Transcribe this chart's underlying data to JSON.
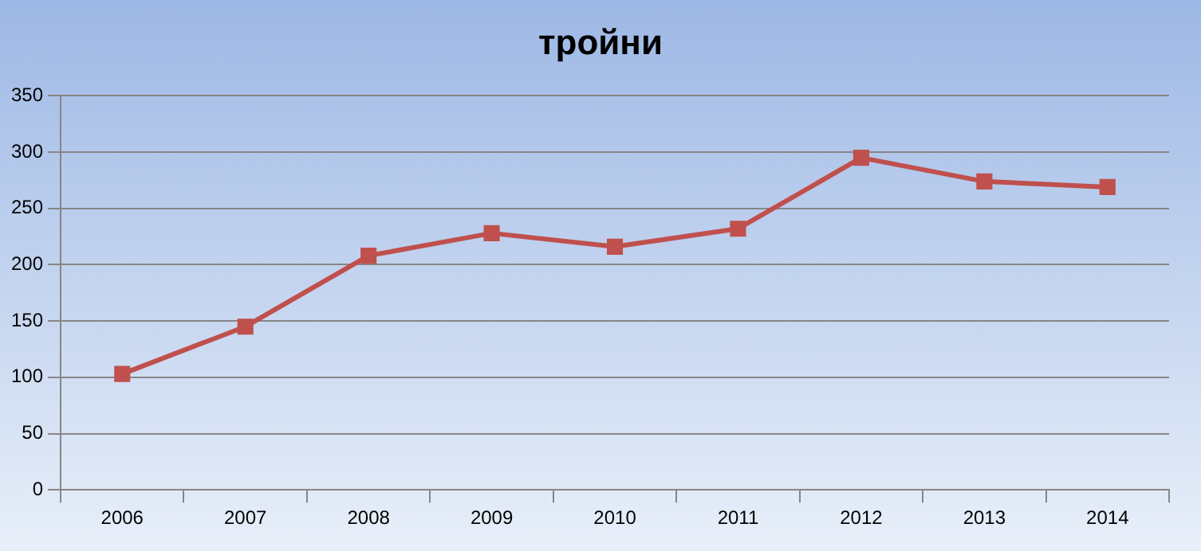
{
  "chart_data": {
    "type": "line",
    "title": "тройни",
    "categories": [
      "2006",
      "2007",
      "2008",
      "2009",
      "2010",
      "2011",
      "2012",
      "2013",
      "2014"
    ],
    "series": [
      {
        "color": "#c0504d",
        "values": [
          103,
          145,
          208,
          228,
          216,
          232,
          295,
          274,
          269
        ]
      }
    ],
    "ylim": [
      0,
      350
    ],
    "yticks": [
      0,
      50,
      100,
      150,
      200,
      250,
      300,
      350
    ],
    "grid": "y",
    "marker": "square",
    "line_style": "solid",
    "legend": false
  }
}
